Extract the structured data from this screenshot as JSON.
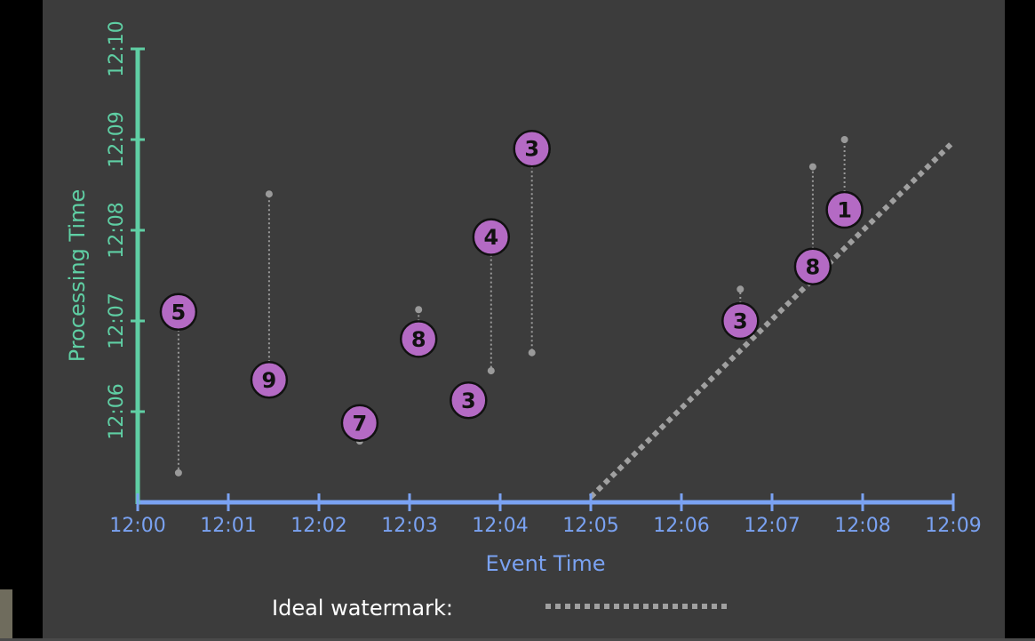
{
  "chart_data": {
    "type": "scatter",
    "xlabel": "Event Time",
    "ylabel": "Processing Time",
    "x_ticks": [
      "12:00",
      "12:01",
      "12:02",
      "12:03",
      "12:04",
      "12:05",
      "12:06",
      "12:07",
      "12:08",
      "12:09"
    ],
    "y_ticks": [
      "12:06",
      "12:07",
      "12:08",
      "12:09",
      "12:10"
    ],
    "y_tick_values": [
      2,
      4,
      6,
      8,
      10
    ],
    "x_range": [
      0,
      9
    ],
    "y_range": [
      0,
      10
    ],
    "points": [
      {
        "label": "5",
        "x": 0.45,
        "y": 4.2,
        "ideal_y": 0.65
      },
      {
        "label": "9",
        "x": 1.45,
        "y": 2.7,
        "ideal_y": 6.8
      },
      {
        "label": "7",
        "x": 2.45,
        "y": 1.75,
        "ideal_y": 1.35
      },
      {
        "label": "8",
        "x": 3.1,
        "y": 3.6,
        "ideal_y": 4.25
      },
      {
        "label": "3",
        "x": 3.65,
        "y": 2.25,
        "ideal_y": 2.25
      },
      {
        "label": "4",
        "x": 3.9,
        "y": 5.85,
        "ideal_y": 2.9
      },
      {
        "label": "3",
        "x": 4.35,
        "y": 7.8,
        "ideal_y": 3.3
      },
      {
        "label": "3",
        "x": 6.65,
        "y": 4.0,
        "ideal_y": 4.7
      },
      {
        "label": "8",
        "x": 7.45,
        "y": 5.2,
        "ideal_y": 7.4
      },
      {
        "label": "1",
        "x": 7.8,
        "y": 6.45,
        "ideal_y": 8.0
      }
    ],
    "watermark": {
      "from": [
        5.0,
        0
      ],
      "to": [
        9.0,
        7.95
      ]
    },
    "colors": {
      "point_fill": "#b46ac4",
      "x_axis": "#7aa2f2",
      "y_axis": "#5fcfa4",
      "watermark": "#a0a0a0",
      "background": "#3c3c3c"
    }
  },
  "legend": {
    "label": "Ideal watermark:"
  }
}
